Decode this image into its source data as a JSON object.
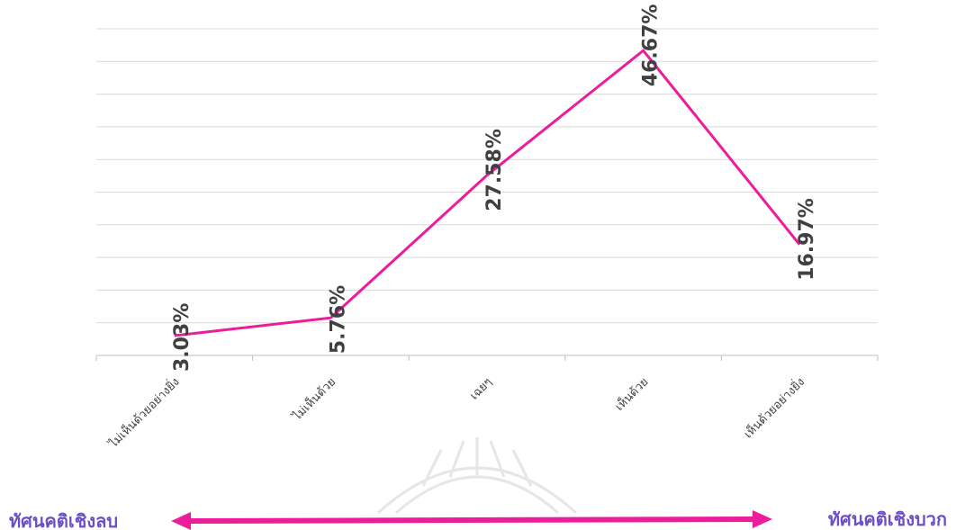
{
  "chart_data": {
    "type": "line",
    "categories": [
      "ไม่เห็นด้วยอย่างยิ่ง",
      "ไม่เห็นด้วย",
      "เฉยๆ",
      "เห็นด้วย",
      "เห็นด้วยอย่างยิ่ง"
    ],
    "series": [
      {
        "values": [
          3.03,
          5.76,
          27.58,
          46.67,
          16.97
        ],
        "data_labels": [
          "3.03%",
          "5.76%",
          "27.58%",
          "46.67%",
          "16.97%"
        ],
        "color": "#ec1c9b"
      }
    ],
    "ylim": [
      0,
      50
    ],
    "gridline_count": 10,
    "grid": true,
    "legend": "none",
    "data_label_orientation": "rotated-90",
    "tick_label_orientation": "rotated-45"
  },
  "attitude_axis": {
    "left_label": "ทัศนคติเชิงลบ",
    "right_label": "ทัศนคติเชิงบวก",
    "color": "#ec1c9b",
    "label_color": "#6b4fc8"
  }
}
